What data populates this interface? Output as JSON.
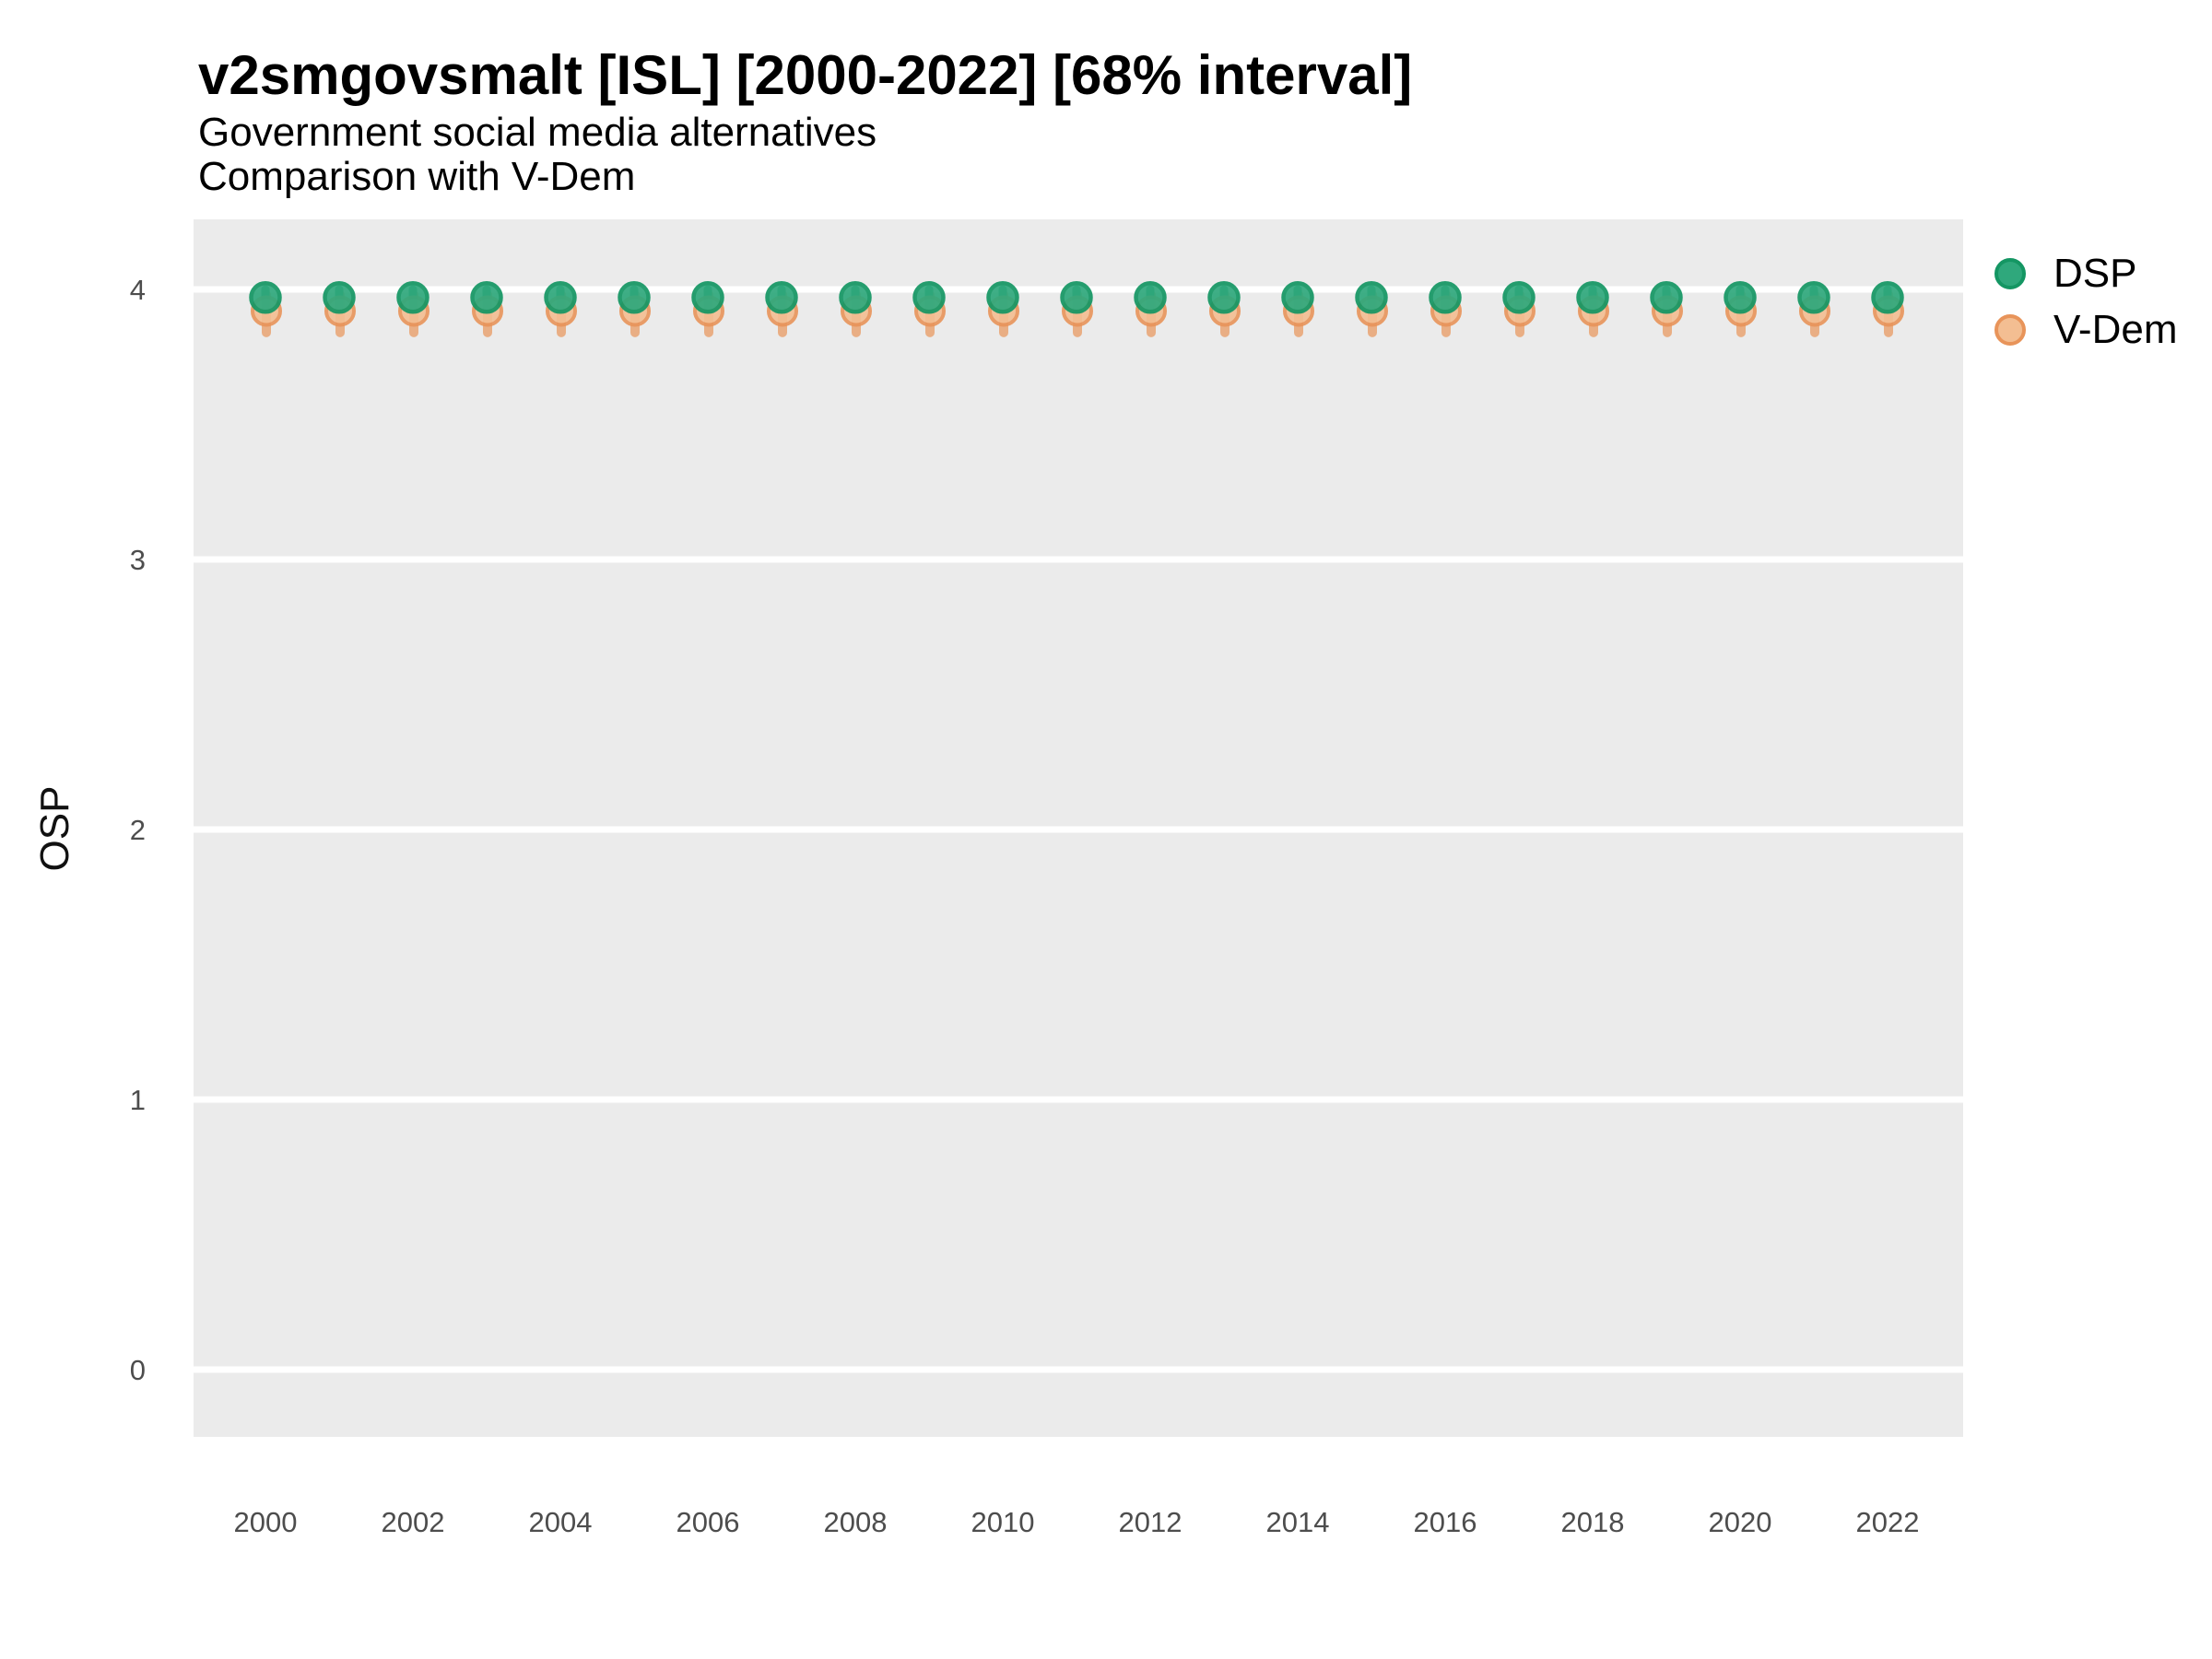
{
  "header": {
    "title": "v2smgovsmalt [ISL] [2000-2022] [68% interval]",
    "subtitle1": "Government social media alternatives",
    "subtitle2": "Comparison with V-Dem"
  },
  "legend": {
    "items": [
      {
        "label": "DSP"
      },
      {
        "label": "V-Dem"
      }
    ]
  },
  "chart_data": {
    "type": "scatter",
    "title": "v2smgovsmalt [ISL] [2000-2022] [68% interval]",
    "subtitle": [
      "Government social media alternatives",
      "Comparison with V-Dem"
    ],
    "xlabel": "",
    "ylabel": "OSP",
    "x": [
      2000,
      2001,
      2002,
      2003,
      2004,
      2005,
      2006,
      2007,
      2008,
      2009,
      2010,
      2011,
      2012,
      2013,
      2014,
      2015,
      2016,
      2017,
      2018,
      2019,
      2020,
      2021,
      2022
    ],
    "x_ticks": [
      2000,
      2002,
      2004,
      2006,
      2008,
      2010,
      2012,
      2014,
      2016,
      2018,
      2020,
      2022
    ],
    "y_ticks": [
      0,
      1,
      2,
      3,
      4
    ],
    "ylim": [
      -0.25,
      4.26
    ],
    "xlim": [
      1999,
      2023
    ],
    "grid": "horizontal-major-only",
    "legend_position": "right",
    "panel_bg": "#EBEBEB",
    "grid_color": "#FFFFFF",
    "tick_label_color": "#4D4D4D",
    "series": [
      {
        "name": "DSP",
        "color_fill": "#2FA87C",
        "color_stroke": "#149663",
        "values": [
          3.97,
          3.97,
          3.97,
          3.97,
          3.97,
          3.97,
          3.97,
          3.97,
          3.97,
          3.97,
          3.97,
          3.97,
          3.97,
          3.97,
          3.97,
          3.97,
          3.97,
          3.97,
          3.97,
          3.97,
          3.97,
          3.97,
          3.97
        ],
        "interval_low": [
          3.93,
          3.93,
          3.93,
          3.93,
          3.93,
          3.93,
          3.93,
          3.93,
          3.93,
          3.93,
          3.93,
          3.93,
          3.93,
          3.93,
          3.93,
          3.93,
          3.93,
          3.93,
          3.93,
          3.93,
          3.93,
          3.93,
          3.93
        ],
        "interval_high": [
          4.0,
          4.0,
          4.0,
          4.0,
          4.0,
          4.0,
          4.0,
          4.0,
          4.0,
          4.0,
          4.0,
          4.0,
          4.0,
          4.0,
          4.0,
          4.0,
          4.0,
          4.0,
          4.0,
          4.0,
          4.0,
          4.0,
          4.0
        ]
      },
      {
        "name": "V-Dem",
        "color_fill": "#F3BE92",
        "color_stroke": "#E8945A",
        "color_stem": "#E9A06B",
        "values": [
          3.92,
          3.92,
          3.92,
          3.92,
          3.92,
          3.92,
          3.92,
          3.92,
          3.92,
          3.92,
          3.92,
          3.92,
          3.92,
          3.92,
          3.92,
          3.92,
          3.92,
          3.92,
          3.92,
          3.92,
          3.92,
          3.92,
          3.92
        ],
        "interval_low": [
          3.84,
          3.84,
          3.84,
          3.84,
          3.84,
          3.84,
          3.84,
          3.84,
          3.84,
          3.84,
          3.84,
          3.84,
          3.84,
          3.84,
          3.84,
          3.84,
          3.84,
          3.84,
          3.84,
          3.84,
          3.84,
          3.84,
          3.84
        ],
        "interval_high": [
          3.98,
          3.98,
          3.98,
          3.98,
          3.98,
          3.98,
          3.98,
          3.98,
          3.98,
          3.98,
          3.98,
          3.98,
          3.98,
          3.98,
          3.98,
          3.98,
          3.98,
          3.98,
          3.98,
          3.98,
          3.98,
          3.98,
          3.98
        ]
      }
    ]
  }
}
